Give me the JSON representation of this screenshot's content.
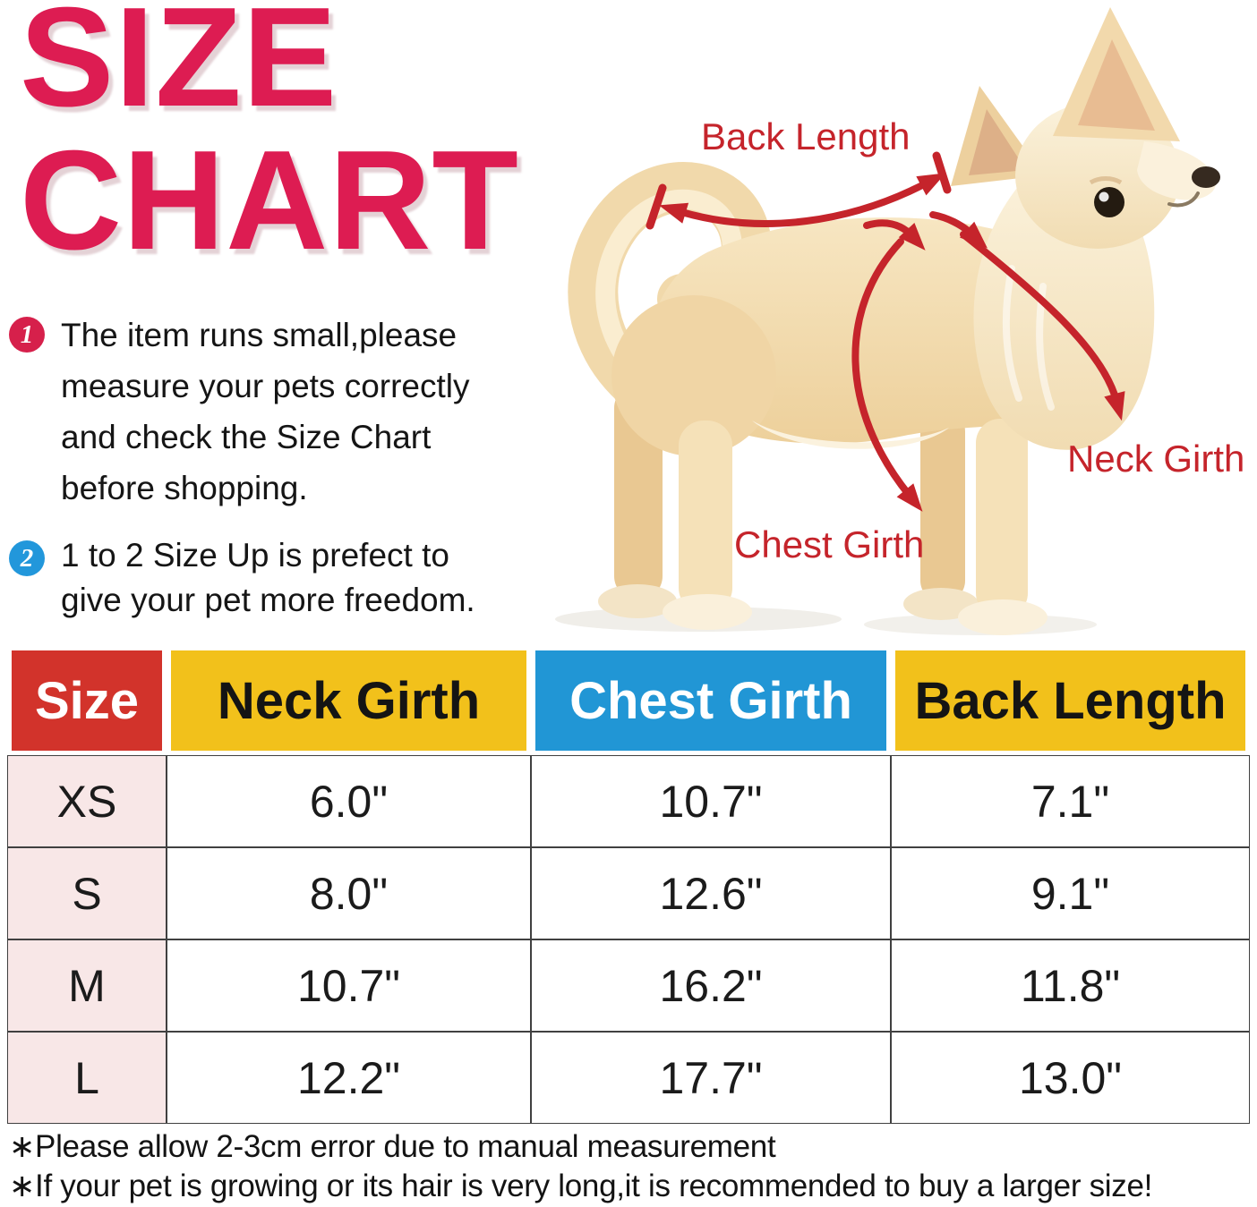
{
  "title": {
    "line1": "SIZE",
    "line2": "CHART"
  },
  "notes": [
    {
      "number": "1",
      "lines": [
        "The item runs small,please",
        "measure your pets correctly",
        "and check the Size Chart",
        "before shopping."
      ]
    },
    {
      "number": "2",
      "lines": [
        "1 to 2 Size Up is prefect to",
        "give your pet more freedom."
      ]
    }
  ],
  "diagram": {
    "photo_subject": "cream long-haired chihuahua dog, standing, facing right",
    "back_length_label": "Back Length",
    "neck_girth_label": "Neck Girth",
    "chest_girth_label": "Chest Girth"
  },
  "chart_data": {
    "type": "table",
    "columns": [
      "Size",
      "Neck Girth",
      "Chest Girth",
      "Back Length"
    ],
    "rows": [
      [
        "XS",
        "6.0\"",
        "10.7\"",
        "7.1\""
      ],
      [
        "S",
        "8.0\"",
        "12.6\"",
        "9.1\""
      ],
      [
        "M",
        "10.7\"",
        "16.2\"",
        "11.8\""
      ],
      [
        "L",
        "12.2\"",
        "17.7\"",
        "13.0\""
      ]
    ]
  },
  "footnotes": [
    "∗Please allow 2-3cm error due to manual measurement",
    "∗If your pet is growing or its hair is very long,it is recommended to buy a larger size!"
  ],
  "colors": {
    "title_pink": "#DD1C52",
    "annotation_red": "#C5242B",
    "note1_badge_red": "#D6204B",
    "note2_badge_blue": "#2297DB",
    "header_size_red": "#D2332B",
    "header_yellow": "#F2C11B",
    "header_blue": "#2196D5",
    "size_column_pink": "#F8E7E7"
  }
}
